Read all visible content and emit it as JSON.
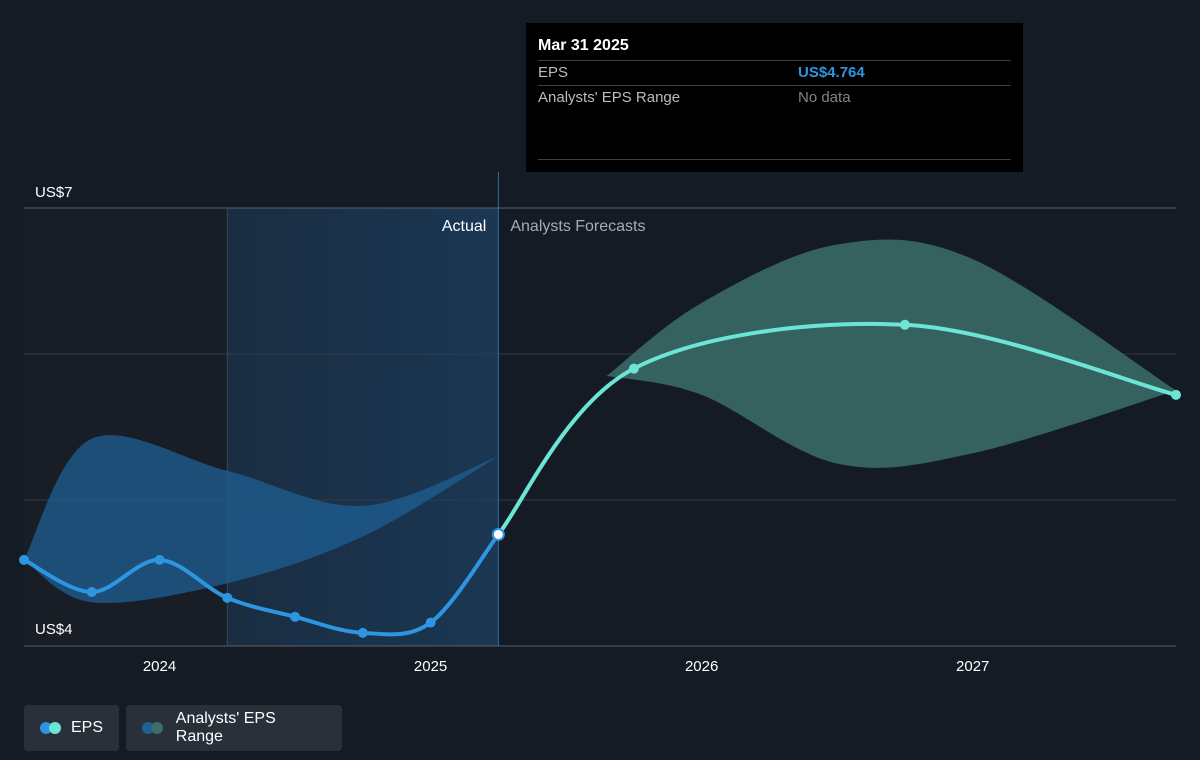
{
  "tooltip": {
    "date": "Mar 31 2025",
    "rows": [
      {
        "label": "EPS",
        "value": "US$4.764"
      },
      {
        "label": "Analysts' EPS Range",
        "value": "No data"
      }
    ]
  },
  "legend": {
    "eps_label": "EPS",
    "range_label": "Analysts' EPS Range"
  },
  "colors": {
    "background": "#151b24",
    "eps_actual": "#2e95e0",
    "eps_forecast": "#6de5d6",
    "range_actual": "#1f5f93",
    "range_forecast": "#3b6e6a",
    "highlight": "#1b3a58"
  },
  "chart_data": {
    "type": "line",
    "ytick_labels": [
      "US$4",
      "US$7"
    ],
    "ylim": [
      4,
      7
    ],
    "xtick_labels": [
      "2024",
      "2025",
      "2026",
      "2027"
    ],
    "xlim": [
      2023.5,
      2027.75
    ],
    "divider_labels": {
      "actual": "Actual",
      "forecast": "Analysts Forecasts"
    },
    "divider_x": 2025.25,
    "highlight_start_x": 2024.25,
    "grid": true,
    "legend_position": "bottom-left",
    "series": [
      {
        "name": "EPS",
        "segment": "actual",
        "points": [
          {
            "x": 2023.5,
            "y": 4.59
          },
          {
            "x": 2023.75,
            "y": 4.37
          },
          {
            "x": 2024.0,
            "y": 4.59
          },
          {
            "x": 2024.25,
            "y": 4.33
          },
          {
            "x": 2024.5,
            "y": 4.2
          },
          {
            "x": 2024.75,
            "y": 4.09
          },
          {
            "x": 2025.0,
            "y": 4.16
          },
          {
            "x": 2025.25,
            "y": 4.764
          }
        ]
      },
      {
        "name": "EPS",
        "segment": "forecast",
        "points": [
          {
            "x": 2025.25,
            "y": 4.764
          },
          {
            "x": 2025.75,
            "y": 5.9
          },
          {
            "x": 2026.75,
            "y": 6.2
          },
          {
            "x": 2027.75,
            "y": 5.72
          }
        ]
      }
    ],
    "ranges": [
      {
        "name": "Analysts' EPS Range",
        "segment": "actual",
        "upper": [
          {
            "x": 2023.5,
            "y": 4.59
          },
          {
            "x": 2023.75,
            "y": 5.42
          },
          {
            "x": 2024.25,
            "y": 5.2
          },
          {
            "x": 2024.75,
            "y": 4.96
          },
          {
            "x": 2025.25,
            "y": 5.3
          }
        ],
        "lower": [
          {
            "x": 2023.5,
            "y": 4.59
          },
          {
            "x": 2023.75,
            "y": 4.3
          },
          {
            "x": 2024.25,
            "y": 4.43
          },
          {
            "x": 2024.75,
            "y": 4.75
          },
          {
            "x": 2025.25,
            "y": 5.3
          }
        ]
      },
      {
        "name": "Analysts' EPS Range",
        "segment": "forecast",
        "upper": [
          {
            "x": 2025.65,
            "y": 5.85
          },
          {
            "x": 2026.0,
            "y": 6.35
          },
          {
            "x": 2026.5,
            "y": 6.75
          },
          {
            "x": 2027.0,
            "y": 6.65
          },
          {
            "x": 2027.75,
            "y": 5.75
          }
        ],
        "lower": [
          {
            "x": 2025.65,
            "y": 5.85
          },
          {
            "x": 2026.0,
            "y": 5.72
          },
          {
            "x": 2026.5,
            "y": 5.25
          },
          {
            "x": 2027.0,
            "y": 5.32
          },
          {
            "x": 2027.75,
            "y": 5.75
          }
        ]
      }
    ]
  }
}
